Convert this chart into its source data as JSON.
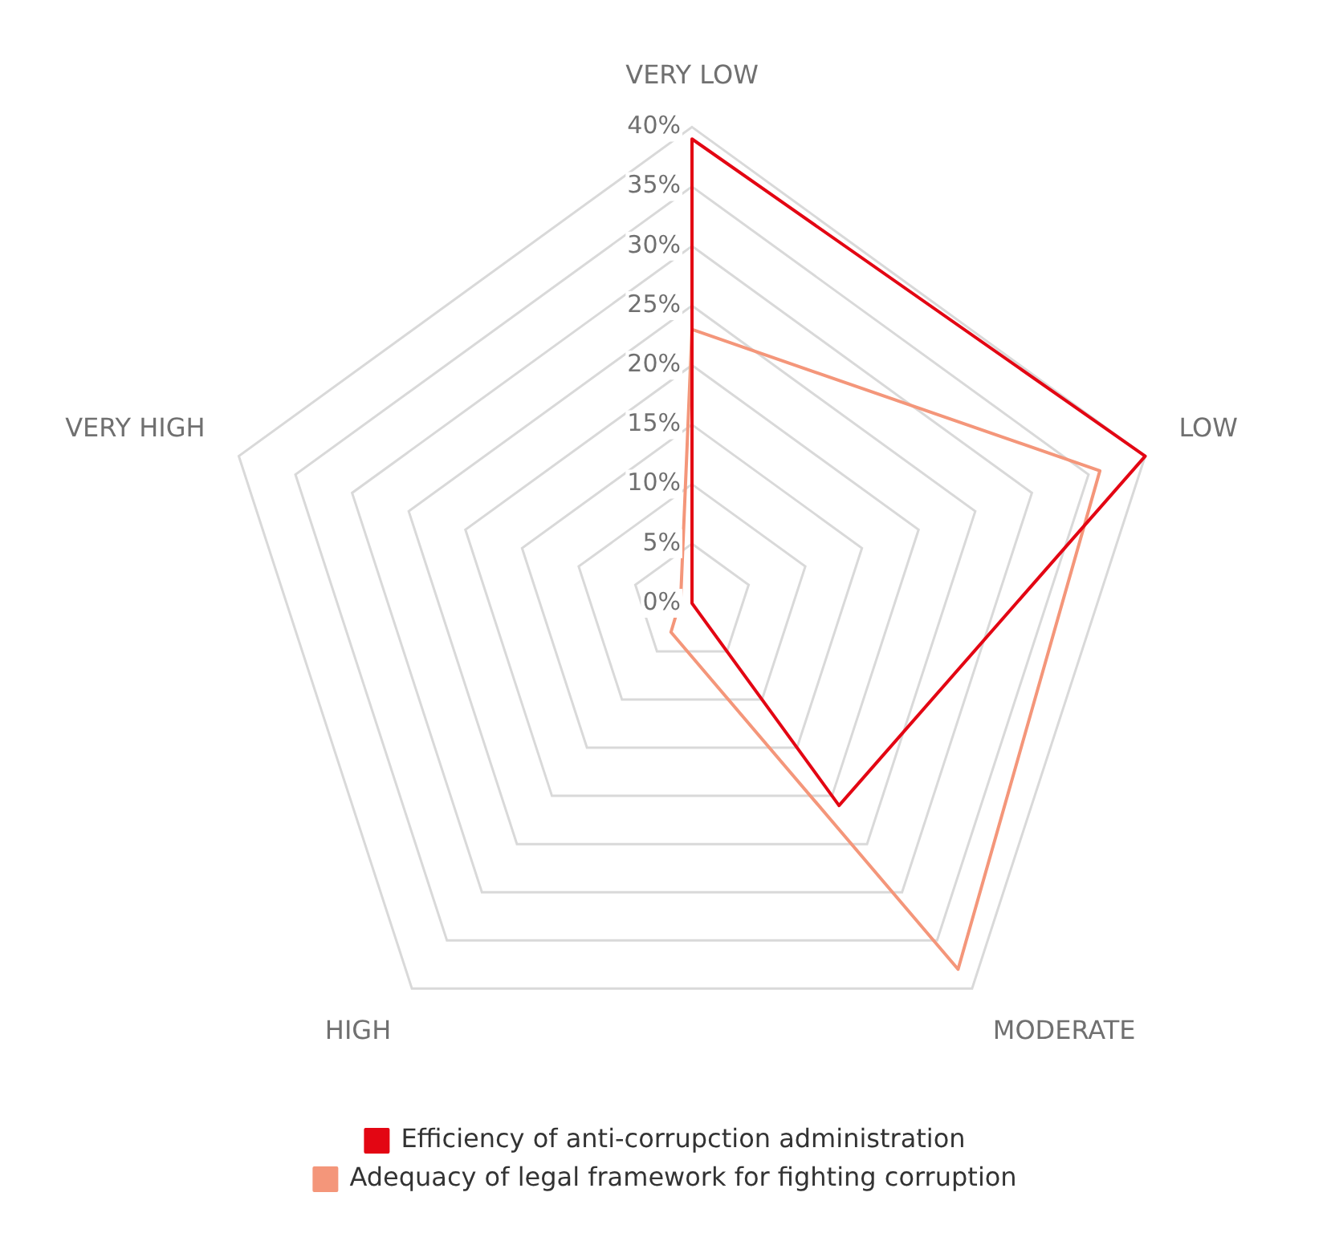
{
  "chart_data": {
    "type": "radar",
    "categories": [
      "VERY LOW",
      "LOW",
      "MODERATE",
      "HIGH",
      "VERY HIGH"
    ],
    "series": [
      {
        "name": "Efficiency of anti-corrupction administration",
        "color": "#e30613",
        "values": [
          39,
          40,
          21,
          0,
          0
        ]
      },
      {
        "name": "Adequacy of legal framework for fighting corruption",
        "color": "#f4967a",
        "values": [
          23,
          36,
          38,
          3,
          1
        ]
      }
    ],
    "ylim": [
      0,
      40
    ],
    "yticks": [
      {
        "value": 0,
        "label": "0%"
      },
      {
        "value": 5,
        "label": "5%"
      },
      {
        "value": 10,
        "label": "10%"
      },
      {
        "value": 15,
        "label": "15%"
      },
      {
        "value": 20,
        "label": "20%"
      },
      {
        "value": 25,
        "label": "25%"
      },
      {
        "value": 30,
        "label": "30%"
      },
      {
        "value": 35,
        "label": "35%"
      },
      {
        "value": 40,
        "label": "40%"
      }
    ],
    "grid": true,
    "legend": "bottom",
    "marker": "none"
  }
}
